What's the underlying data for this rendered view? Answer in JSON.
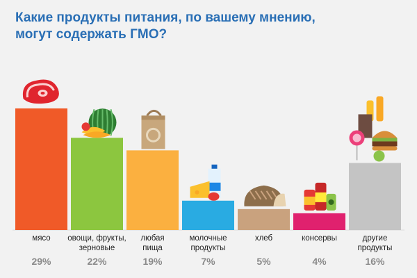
{
  "title_lines": [
    "Какие продукты питания, по вашему мнению,",
    "могут содержать ГМО?"
  ],
  "chart_data": {
    "type": "bar",
    "title": "Какие продукты питания, по вашему мнению, могут содержать ГМО?",
    "categories": [
      [
        "мясо"
      ],
      [
        "овощи, фрукты,",
        "зерновые"
      ],
      [
        "любая",
        "пища"
      ],
      [
        "молочные",
        "продукты"
      ],
      [
        "хлеб"
      ],
      [
        "консервы"
      ],
      [
        "другие",
        "продукты"
      ]
    ],
    "values": [
      29,
      22,
      19,
      7,
      5,
      4,
      16
    ],
    "value_labels": [
      "29%",
      "22%",
      "19%",
      "7%",
      "5%",
      "4%",
      "16%"
    ],
    "colors": [
      "#f05a28",
      "#8cc63f",
      "#fbb040",
      "#29abe2",
      "#c9a27e",
      "#e0216e",
      "#c4c4c4"
    ],
    "icons": [
      "meat-icon",
      "watermelon-icon",
      "grocery-bag-icon",
      "milk-cheese-icon",
      "bread-icon",
      "canned-food-icon",
      "mixed-food-icon"
    ],
    "ylim": [
      0,
      30
    ]
  }
}
